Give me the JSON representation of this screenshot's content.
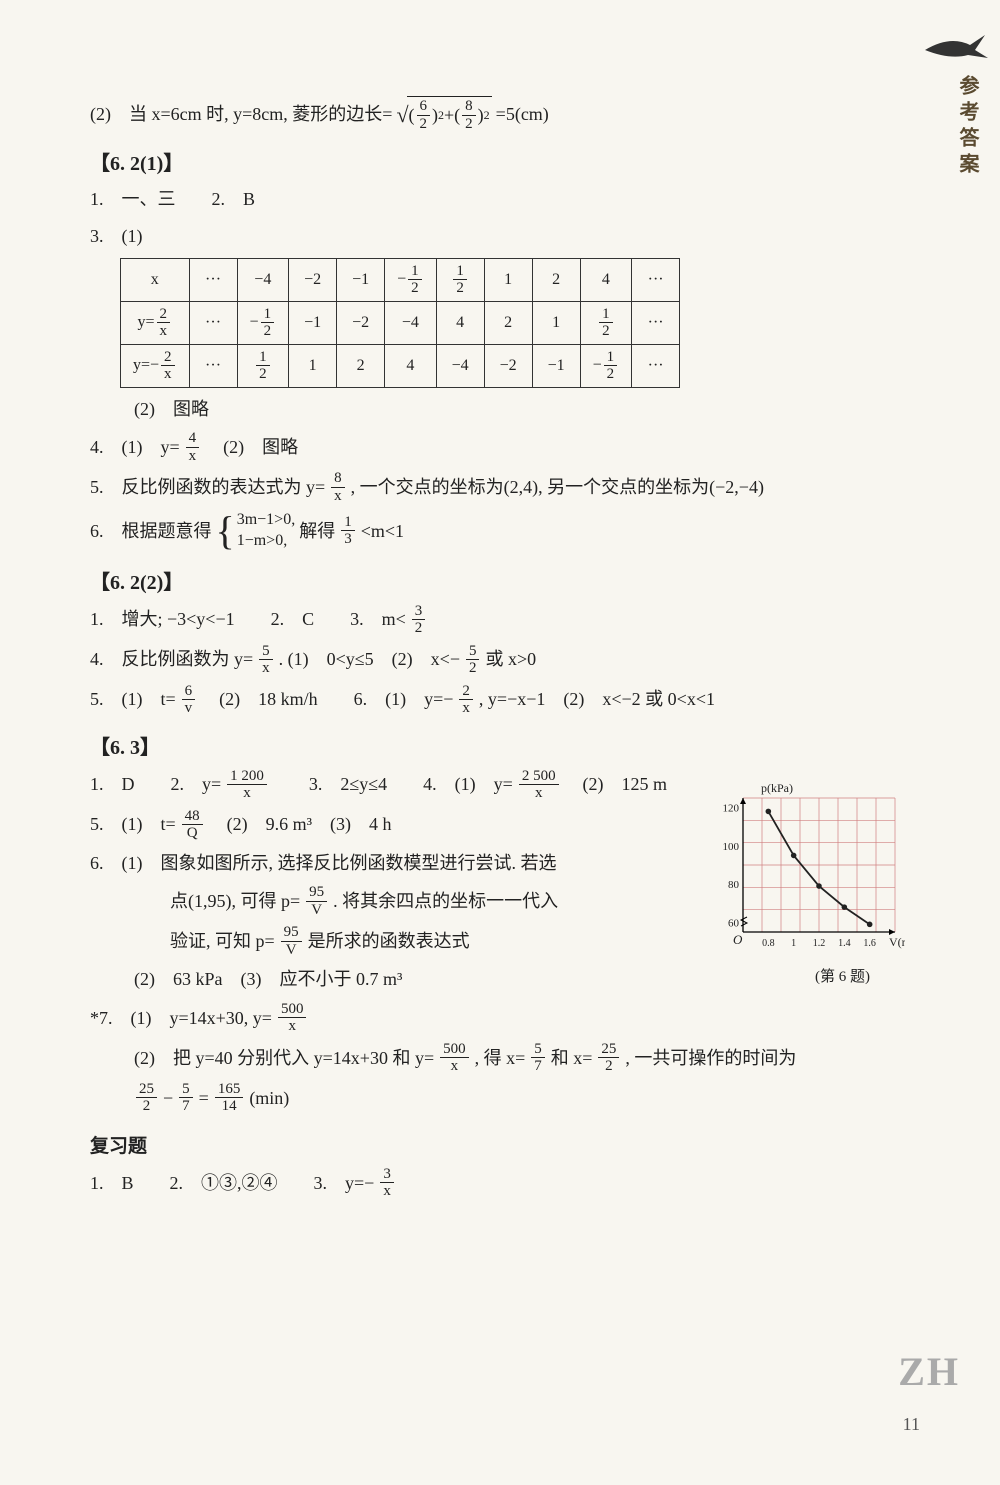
{
  "side_label": "参考答案",
  "page_number": "11",
  "zh_mark": "ZH",
  "chart_caption": "(第 6 题)",
  "intro_line": {
    "prefix": "(2)　当 x=6cm 时, y=8cm, 菱形的边长=",
    "sqrt_a_n": "6",
    "sqrt_a_d": "2",
    "sqrt_b_n": "8",
    "sqrt_b_d": "2",
    "suffix": "=5(cm)"
  },
  "sec_621_head": "【6. 2(1)】",
  "sec_621": {
    "q1": "1.　一、三　　2.　B",
    "q3_label": "3.　(1)",
    "table": {
      "r1": [
        "x",
        "···",
        "−4",
        "−2",
        "−1",
        [
          "−",
          "1",
          "2"
        ],
        [
          "",
          "1",
          "2"
        ],
        "1",
        "2",
        "4",
        "···"
      ],
      "r2": [
        [
          "y=",
          "2",
          "x"
        ],
        "···",
        [
          "−",
          "1",
          "2"
        ],
        "−1",
        "−2",
        "−4",
        "4",
        "2",
        "1",
        [
          "",
          "1",
          "2"
        ],
        "···"
      ],
      "r3": [
        [
          "y=−",
          "2",
          "x"
        ],
        "···",
        [
          "",
          "1",
          "2"
        ],
        "1",
        "2",
        "4",
        "−4",
        "−2",
        "−1",
        [
          "−",
          "1",
          "2"
        ],
        "···"
      ]
    },
    "q3_2": "(2)　图略",
    "q4_prefix": "4.　(1)　y=",
    "q4_n": "4",
    "q4_d": "x",
    "q4_suffix": "　(2)　图略",
    "q5_prefix": "5.　反比例函数的表达式为 y=",
    "q5_n": "8",
    "q5_d": "x",
    "q5_suffix": ", 一个交点的坐标为(2,4), 另一个交点的坐标为(−2,−4)",
    "q6_prefix": "6.　根据题意得",
    "q6_case1": "3m−1>0,",
    "q6_case2": "1−m>0,",
    "q6_mid": "解得",
    "q6_fa_n": "1",
    "q6_fa_d": "3",
    "q6_suffix": "<m<1"
  },
  "sec_622_head": "【6. 2(2)】",
  "sec_622": {
    "q1_prefix": "1.　增大; −3<y<−1　　2.　C　　3.　m<",
    "q1_n": "3",
    "q1_d": "2",
    "q4_prefix": "4.　反比例函数为 y=",
    "q4_n": "5",
    "q4_d": "x",
    "q4_mid": ". (1)　0<y≤5　(2)　x<−",
    "q4_bn": "5",
    "q4_bd": "2",
    "q4_suffix": " 或 x>0",
    "q5_prefix": "5.　(1)　t=",
    "q5_n": "6",
    "q5_d": "v",
    "q5_mid": "　(2)　18 km/h　　6.　(1)　y=−",
    "q5_bn": "2",
    "q5_bd": "x",
    "q5_after": ", y=−x−1　(2)　x<−2 或 0<x<1"
  },
  "sec_63_head": "【6. 3】",
  "sec_63": {
    "q1_prefix": "1.　D　　2.　y=",
    "q1_n": "1 200",
    "q1_d": "x",
    "q1_mid": "　　3.　2≤y≤4　　4.　(1)　y=",
    "q1_bn": "2 500",
    "q1_bd": "x",
    "q1_suffix": "　(2)　125 m",
    "q5_prefix": "5.　(1)　t=",
    "q5_n": "48",
    "q5_d": "Q",
    "q5_suffix": "　(2)　9.6 m³　(3)　4 h",
    "q6_1": "6.　(1)　图象如图所示, 选择反比例函数模型进行尝试. 若选",
    "q6_2a": "点(1,95), 可得 p=",
    "q6_2n": "95",
    "q6_2d": "V",
    "q6_2b": ". 将其余四点的坐标一一代入",
    "q6_3a": "验证, 可知 p=",
    "q6_3n": "95",
    "q6_3d": "V",
    "q6_3b": "是所求的函数表达式",
    "q6_4": "(2)　63 kPa　(3)　应不小于 0.7 m³",
    "q7_prefix": "*7.　(1)　y=14x+30, y=",
    "q7_n": "500",
    "q7_d": "x",
    "q7_2a": "(2)　把 y=40 分别代入 y=14x+30 和 y=",
    "q7_2n": "500",
    "q7_2d": "x",
    "q7_2b": ", 得 x=",
    "q7_2cn": "5",
    "q7_2cd": "7",
    "q7_2c2": "和 x=",
    "q7_2dn": "25",
    "q7_2dd": "2",
    "q7_2e": ", 一共可操作的时间为",
    "q7_3an": "25",
    "q7_3ad": "2",
    "q7_3m1": "−",
    "q7_3bn": "5",
    "q7_3bd": "7",
    "q7_3m2": "=",
    "q7_3cn": "165",
    "q7_3cd": "14",
    "q7_3suf": "(min)"
  },
  "review_head": "复习题",
  "review": {
    "q1_prefix": "1.　B　　2.　①③,②④　　3.　y=−",
    "q1_n": "3",
    "q1_d": "x"
  },
  "chart": {
    "ylabel": "p(kPa)",
    "xlabel": "V(m³)",
    "yticks": [
      60,
      80,
      100,
      120
    ],
    "xticks": [
      "0.8",
      "1",
      "1.2",
      "1.4",
      "1.6"
    ],
    "points": [
      [
        0.8,
        118
      ],
      [
        1.0,
        95
      ],
      [
        1.2,
        79
      ],
      [
        1.4,
        68
      ],
      [
        1.6,
        59
      ]
    ],
    "xlim": [
      0.6,
      1.8
    ],
    "ylim": [
      55,
      125
    ],
    "grid_color": "#d08080",
    "line_color": "#222"
  }
}
